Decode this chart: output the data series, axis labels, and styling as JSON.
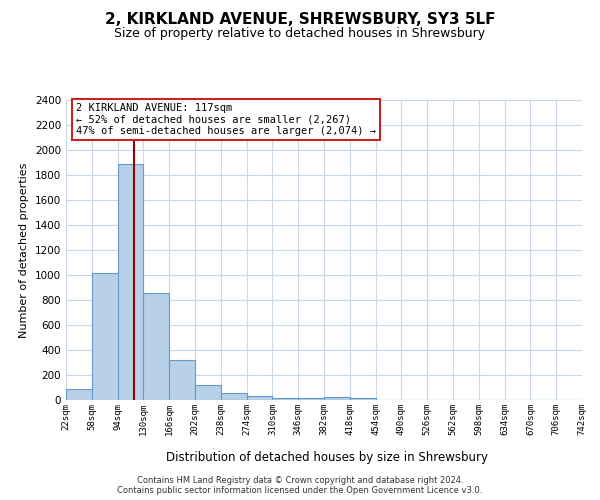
{
  "title": "2, KIRKLAND AVENUE, SHREWSBURY, SY3 5LF",
  "subtitle": "Size of property relative to detached houses in Shrewsbury",
  "xlabel": "Distribution of detached houses by size in Shrewsbury",
  "ylabel": "Number of detached properties",
  "footnote1": "Contains HM Land Registry data © Crown copyright and database right 2024.",
  "footnote2": "Contains public sector information licensed under the Open Government Licence v3.0.",
  "bin_edges": [
    22,
    58,
    94,
    130,
    166,
    202,
    238,
    274,
    310,
    346,
    382,
    418,
    454,
    490,
    526,
    562,
    598,
    634,
    670,
    706,
    742
  ],
  "bin_labels": [
    "22sqm",
    "58sqm",
    "94sqm",
    "130sqm",
    "166sqm",
    "202sqm",
    "238sqm",
    "274sqm",
    "310sqm",
    "346sqm",
    "382sqm",
    "418sqm",
    "454sqm",
    "490sqm",
    "526sqm",
    "562sqm",
    "598sqm",
    "634sqm",
    "670sqm",
    "706sqm",
    "742sqm"
  ],
  "counts": [
    90,
    1020,
    1890,
    860,
    320,
    120,
    55,
    35,
    20,
    15,
    25,
    15,
    0,
    0,
    0,
    0,
    0,
    0,
    0,
    0
  ],
  "bar_color": "#b8d0e8",
  "bar_edge_color": "#6699cc",
  "property_size": 117,
  "vline_color": "#990000",
  "ylim": [
    0,
    2400
  ],
  "yticks": [
    0,
    200,
    400,
    600,
    800,
    1000,
    1200,
    1400,
    1600,
    1800,
    2000,
    2200,
    2400
  ],
  "annotation_title": "2 KIRKLAND AVENUE: 117sqm",
  "annotation_line1": "← 52% of detached houses are smaller (2,267)",
  "annotation_line2": "47% of semi-detached houses are larger (2,074) →",
  "annotation_box_color": "#ffffff",
  "annotation_box_edge": "#cc2222",
  "background_color": "#ffffff",
  "grid_color": "#c8d8e8",
  "title_fontsize": 11,
  "subtitle_fontsize": 9
}
